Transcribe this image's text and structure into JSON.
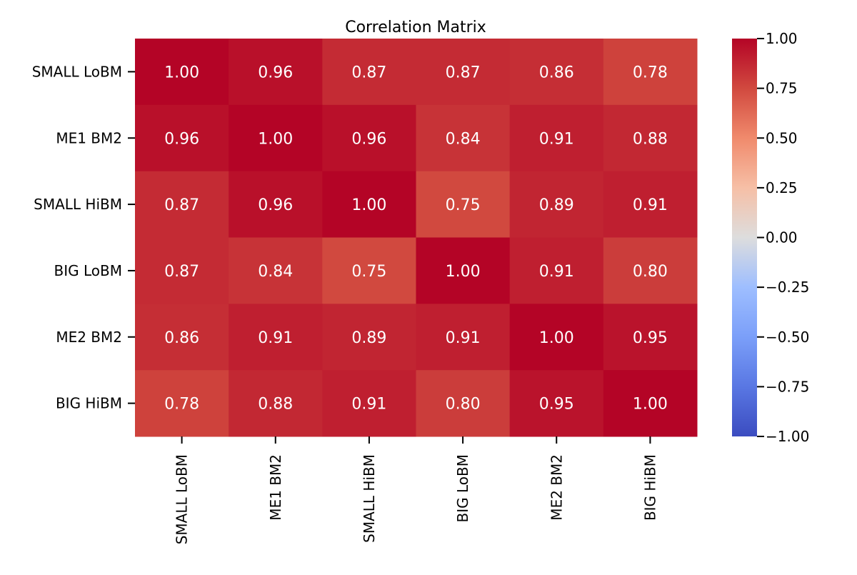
{
  "chart_data": {
    "type": "heatmap",
    "title": "Correlation Matrix",
    "xlabel": "",
    "ylabel": "",
    "row_labels": [
      "SMALL LoBM",
      "ME1 BM2",
      "SMALL HiBM",
      "BIG LoBM",
      "ME2 BM2",
      "BIG HiBM"
    ],
    "col_labels": [
      "SMALL LoBM",
      "ME1 BM2",
      "SMALL HiBM",
      "BIG LoBM",
      "ME2 BM2",
      "BIG HiBM"
    ],
    "values": [
      [
        1.0,
        0.96,
        0.87,
        0.87,
        0.86,
        0.78
      ],
      [
        0.96,
        1.0,
        0.96,
        0.84,
        0.91,
        0.88
      ],
      [
        0.87,
        0.96,
        1.0,
        0.75,
        0.89,
        0.91
      ],
      [
        0.87,
        0.84,
        0.75,
        1.0,
        0.91,
        0.8
      ],
      [
        0.86,
        0.91,
        0.89,
        0.91,
        1.0,
        0.95
      ],
      [
        0.78,
        0.88,
        0.91,
        0.8,
        0.95,
        1.0
      ]
    ],
    "value_format_decimals": 2,
    "colormap": "coolwarm",
    "vmin": -1.0,
    "vmax": 1.0,
    "colorbar_ticks": [
      "1.00",
      "0.75",
      "0.50",
      "0.25",
      "0.00",
      "−0.25",
      "−0.50",
      "−0.75",
      "−1.00"
    ],
    "colorbar_tick_values": [
      1.0,
      0.75,
      0.5,
      0.25,
      0.0,
      -0.25,
      -0.5,
      -0.75,
      -1.0
    ],
    "colorbar_colors": {
      "low": "#3b4cc0",
      "mid": "#dddddd",
      "high": "#b40426"
    },
    "cell_text_color": "#ffffff",
    "grid": false,
    "legend": "colorbar-right"
  }
}
